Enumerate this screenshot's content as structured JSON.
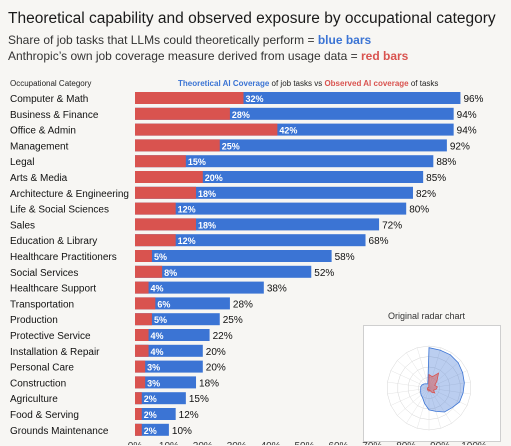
{
  "title": "Theoretical capability and observed exposure by occupational category",
  "subtitle_line1_text": "Share of job tasks that LLMs could theoretically perform = ",
  "subtitle_line1_highlight": "blue bars",
  "subtitle_line2_text": "Anthropic’s own job coverage measure derived from usage data = ",
  "subtitle_line2_highlight": "red bars",
  "inset_title": "Original radar chart",
  "colors": {
    "theoretical": "#3b74d4",
    "observed": "#d9534f",
    "background": "#f7f6f3"
  },
  "chart_data": {
    "type": "bar",
    "orientation": "horizontal",
    "category_header": "Occupational Category",
    "legend": {
      "theoretical_label": "Theoretical AI Coverage",
      "middle_text": " of job tasks vs ",
      "observed_label": "Observed AI coverage",
      "end_text": " of tasks"
    },
    "categories": [
      "Computer & Math",
      "Business & Finance",
      "Office & Admin",
      "Management",
      "Legal",
      "Arts & Media",
      "Architecture & Engineering",
      "Life & Social Sciences",
      "Sales",
      "Education & Library",
      "Healthcare Practitioners",
      "Social Services",
      "Healthcare Support",
      "Transportation",
      "Production",
      "Protective Service",
      "Installation & Repair",
      "Personal Care",
      "Construction",
      "Agriculture",
      "Food & Serving",
      "Grounds Maintenance"
    ],
    "series": [
      {
        "name": "Theoretical AI Coverage",
        "values": [
          96,
          94,
          94,
          92,
          88,
          85,
          82,
          80,
          72,
          68,
          58,
          52,
          38,
          28,
          25,
          22,
          20,
          20,
          18,
          15,
          12,
          10
        ]
      },
      {
        "name": "Observed AI coverage",
        "values": [
          32,
          28,
          42,
          25,
          15,
          20,
          18,
          12,
          18,
          12,
          5,
          8,
          4,
          6,
          5,
          4,
          4,
          3,
          3,
          2,
          2,
          2
        ]
      }
    ],
    "value_suffix": "%",
    "xlim": [
      0,
      100
    ],
    "x_ticks": [
      "0%",
      "10%",
      "20%",
      "30%",
      "40%",
      "50%",
      "60%",
      "70%",
      "80%",
      "90%",
      "100%"
    ]
  }
}
